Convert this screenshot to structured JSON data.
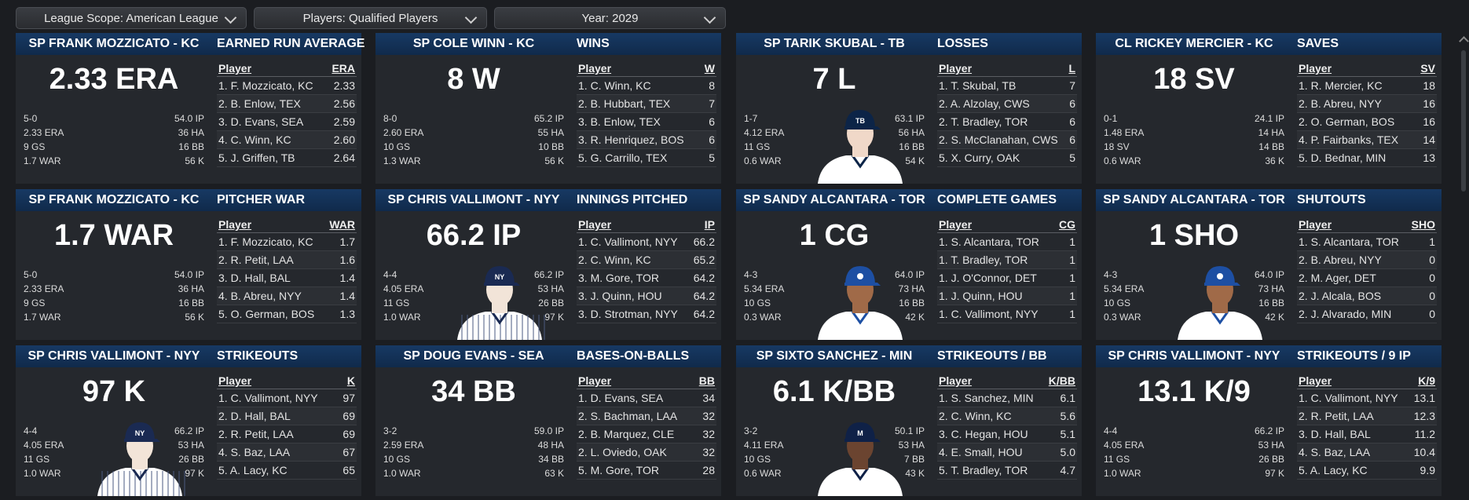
{
  "filters": [
    {
      "label": "League Scope: American League"
    },
    {
      "label": "Players: Qualified Players"
    },
    {
      "label": "Year: 2029"
    }
  ],
  "cards": [
    {
      "player": "SP FRANK MOZZICATO - KC",
      "category": "EARNED RUN AVERAGE",
      "big": "2.33 ERA",
      "left": [
        "5-0",
        "2.33 ERA",
        "9 GS",
        "1.7 WAR"
      ],
      "right": [
        "54.0 IP",
        "36 HA",
        "16 BB",
        "56 K"
      ],
      "avatar": "none",
      "col_player": "Player",
      "col_stat": "ERA",
      "rows": [
        {
          "name": "1. F. Mozzicato, KC",
          "value": "2.33"
        },
        {
          "name": "2. B. Enlow, TEX",
          "value": "2.56"
        },
        {
          "name": "3. D. Evans, SEA",
          "value": "2.59"
        },
        {
          "name": "4. C. Winn, KC",
          "value": "2.60"
        },
        {
          "name": "5. J. Griffen, TB",
          "value": "2.64"
        }
      ]
    },
    {
      "player": "SP COLE WINN - KC",
      "category": "WINS",
      "big": "8 W",
      "left": [
        "8-0",
        "2.60 ERA",
        "10 GS",
        "1.3 WAR"
      ],
      "right": [
        "65.2 IP",
        "55 HA",
        "10 BB",
        "56 K"
      ],
      "avatar": "none",
      "col_player": "Player",
      "col_stat": "W",
      "rows": [
        {
          "name": "1. C. Winn, KC",
          "value": "8"
        },
        {
          "name": "2. B. Hubbart, TEX",
          "value": "7"
        },
        {
          "name": "3. B. Enlow, TEX",
          "value": "6"
        },
        {
          "name": "3. R. Henriquez, BOS",
          "value": "6"
        },
        {
          "name": "5. G. Carrillo, TEX",
          "value": "5"
        }
      ]
    },
    {
      "player": "SP TARIK SKUBAL - TB",
      "category": "LOSSES",
      "big": "7 L",
      "left": [
        "1-7",
        "4.12 ERA",
        "11 GS",
        "0.6 WAR"
      ],
      "right": [
        "63.1 IP",
        "56 HA",
        "16 BB",
        "54 K"
      ],
      "avatar": "tb",
      "col_player": "Player",
      "col_stat": "L",
      "rows": [
        {
          "name": "1. T. Skubal, TB",
          "value": "7"
        },
        {
          "name": "2. A. Alzolay, CWS",
          "value": "6"
        },
        {
          "name": "2. T. Bradley, TOR",
          "value": "6"
        },
        {
          "name": "2. S. McClanahan, CWS",
          "value": "6"
        },
        {
          "name": "5. X. Curry, OAK",
          "value": "5"
        }
      ]
    },
    {
      "player": "CL RICKEY MERCIER - KC",
      "category": "SAVES",
      "big": "18 SV",
      "left": [
        "0-1",
        "1.48 ERA",
        "18 SV",
        "0.6 WAR"
      ],
      "right": [
        "24.1 IP",
        "14 HA",
        "14 BB",
        "36 K"
      ],
      "avatar": "none",
      "col_player": "Player",
      "col_stat": "SV",
      "rows": [
        {
          "name": "1. R. Mercier, KC",
          "value": "18"
        },
        {
          "name": "2. B. Abreu, NYY",
          "value": "16"
        },
        {
          "name": "2. O. German, BOS",
          "value": "16"
        },
        {
          "name": "4. P. Fairbanks, TEX",
          "value": "14"
        },
        {
          "name": "5. D. Bednar, MIN",
          "value": "13"
        }
      ]
    },
    {
      "player": "SP FRANK MOZZICATO - KC",
      "category": "PITCHER WAR",
      "big": "1.7 WAR",
      "left": [
        "5-0",
        "2.33 ERA",
        "9 GS",
        "1.7 WAR"
      ],
      "right": [
        "54.0 IP",
        "36 HA",
        "16 BB",
        "56 K"
      ],
      "avatar": "none",
      "col_player": "Player",
      "col_stat": "WAR",
      "rows": [
        {
          "name": "1. F. Mozzicato, KC",
          "value": "1.7"
        },
        {
          "name": "2. R. Petit, LAA",
          "value": "1.6"
        },
        {
          "name": "3. D. Hall, BAL",
          "value": "1.4"
        },
        {
          "name": "4. B. Abreu, NYY",
          "value": "1.4"
        },
        {
          "name": "5. O. German, BOS",
          "value": "1.3"
        }
      ]
    },
    {
      "player": "SP CHRIS VALLIMONT - NYY",
      "category": "INNINGS PITCHED",
      "big": "66.2 IP",
      "left": [
        "4-4",
        "4.05 ERA",
        "11 GS",
        "1.0 WAR"
      ],
      "right": [
        "66.2 IP",
        "53 HA",
        "26 BB",
        "97 K"
      ],
      "avatar": "nyy",
      "col_player": "Player",
      "col_stat": "IP",
      "rows": [
        {
          "name": "1. C. Vallimont, NYY",
          "value": "66.2"
        },
        {
          "name": "2. C. Winn, KC",
          "value": "65.2"
        },
        {
          "name": "3. M. Gore, TOR",
          "value": "64.2"
        },
        {
          "name": "3. J. Quinn, HOU",
          "value": "64.2"
        },
        {
          "name": "3. D. Strotman, NYY",
          "value": "64.2"
        }
      ]
    },
    {
      "player": "SP SANDY ALCANTARA - TOR",
      "category": "COMPLETE GAMES",
      "big": "1 CG",
      "left": [
        "4-3",
        "5.34 ERA",
        "10 GS",
        "0.3 WAR"
      ],
      "right": [
        "64.0 IP",
        "73 HA",
        "16 BB",
        "42 K"
      ],
      "avatar": "tor",
      "col_player": "Player",
      "col_stat": "CG",
      "rows": [
        {
          "name": "1. S. Alcantara, TOR",
          "value": "1"
        },
        {
          "name": "1. T. Bradley, TOR",
          "value": "1"
        },
        {
          "name": "1. J. O'Connor, DET",
          "value": "1"
        },
        {
          "name": "1. J. Quinn, HOU",
          "value": "1"
        },
        {
          "name": "1. C. Vallimont, NYY",
          "value": "1"
        }
      ]
    },
    {
      "player": "SP SANDY ALCANTARA - TOR",
      "category": "SHUTOUTS",
      "big": "1 SHO",
      "left": [
        "4-3",
        "5.34 ERA",
        "10 GS",
        "0.3 WAR"
      ],
      "right": [
        "64.0 IP",
        "73 HA",
        "16 BB",
        "42 K"
      ],
      "avatar": "tor",
      "col_player": "Player",
      "col_stat": "SHO",
      "rows": [
        {
          "name": "1. S. Alcantara, TOR",
          "value": "1"
        },
        {
          "name": "2. B. Abreu, NYY",
          "value": "0"
        },
        {
          "name": "2. M. Ager, DET",
          "value": "0"
        },
        {
          "name": "2. J. Alcala, BOS",
          "value": "0"
        },
        {
          "name": "2. J. Alvarado, MIN",
          "value": "0"
        }
      ]
    },
    {
      "player": "SP CHRIS VALLIMONT - NYY",
      "category": "STRIKEOUTS",
      "big": "97 K",
      "left": [
        "4-4",
        "4.05 ERA",
        "11 GS",
        "1.0 WAR"
      ],
      "right": [
        "66.2 IP",
        "53 HA",
        "26 BB",
        "97 K"
      ],
      "avatar": "nyy",
      "col_player": "Player",
      "col_stat": "K",
      "rows": [
        {
          "name": "1. C. Vallimont, NYY",
          "value": "97"
        },
        {
          "name": "2. D. Hall, BAL",
          "value": "69"
        },
        {
          "name": "2. R. Petit, LAA",
          "value": "69"
        },
        {
          "name": "4. S. Baz, LAA",
          "value": "67"
        },
        {
          "name": "5. A. Lacy, KC",
          "value": "65"
        }
      ]
    },
    {
      "player": "SP DOUG EVANS - SEA",
      "category": "BASES-ON-BALLS",
      "big": "34 BB",
      "left": [
        "3-2",
        "2.59 ERA",
        "10 GS",
        "1.0 WAR"
      ],
      "right": [
        "59.0 IP",
        "48 HA",
        "34 BB",
        "63 K"
      ],
      "avatar": "none",
      "col_player": "Player",
      "col_stat": "BB",
      "rows": [
        {
          "name": "1. D. Evans, SEA",
          "value": "34"
        },
        {
          "name": "2. S. Bachman, LAA",
          "value": "32"
        },
        {
          "name": "2. B. Marquez, CLE",
          "value": "32"
        },
        {
          "name": "2. L. Oviedo, OAK",
          "value": "32"
        },
        {
          "name": "5. M. Gore, TOR",
          "value": "28"
        }
      ]
    },
    {
      "player": "SP SIXTO SANCHEZ - MIN",
      "category": "STRIKEOUTS / BB",
      "big": "6.1 K/BB",
      "left": [
        "3-2",
        "4.11 ERA",
        "10 GS",
        "0.6 WAR"
      ],
      "right": [
        "50.1 IP",
        "53 HA",
        "7 BB",
        "43 K"
      ],
      "avatar": "min",
      "col_player": "Player",
      "col_stat": "K/BB",
      "rows": [
        {
          "name": "1. S. Sanchez, MIN",
          "value": "6.1"
        },
        {
          "name": "2. C. Winn, KC",
          "value": "5.6"
        },
        {
          "name": "3. C. Hegan, HOU",
          "value": "5.1"
        },
        {
          "name": "4. E. Small, HOU",
          "value": "5.0"
        },
        {
          "name": "5. T. Bradley, TOR",
          "value": "4.7"
        }
      ]
    },
    {
      "player": "SP CHRIS VALLIMONT - NYY",
      "category": "STRIKEOUTS / 9 IP",
      "big": "13.1 K/9",
      "left": [
        "4-4",
        "4.05 ERA",
        "11 GS",
        "1.0 WAR"
      ],
      "right": [
        "66.2 IP",
        "53 HA",
        "26 BB",
        "97 K"
      ],
      "avatar": "none",
      "col_player": "Player",
      "col_stat": "K/9",
      "rows": [
        {
          "name": "1. C. Vallimont, NYY",
          "value": "13.1"
        },
        {
          "name": "2. R. Petit, LAA",
          "value": "12.3"
        },
        {
          "name": "3. D. Hall, BAL",
          "value": "11.2"
        },
        {
          "name": "4. S. Baz, LAA",
          "value": "10.4"
        },
        {
          "name": "5. A. Lacy, KC",
          "value": "9.9"
        }
      ]
    }
  ],
  "colors": {
    "header_blue": "#173963",
    "card_bg": "#25282d",
    "page_bg": "#1b1d21",
    "nyy_navy": "#1a2a52",
    "tor_blue": "#1d4fa3",
    "min_navy": "#0f2147",
    "tb_navy": "#0c2447"
  }
}
